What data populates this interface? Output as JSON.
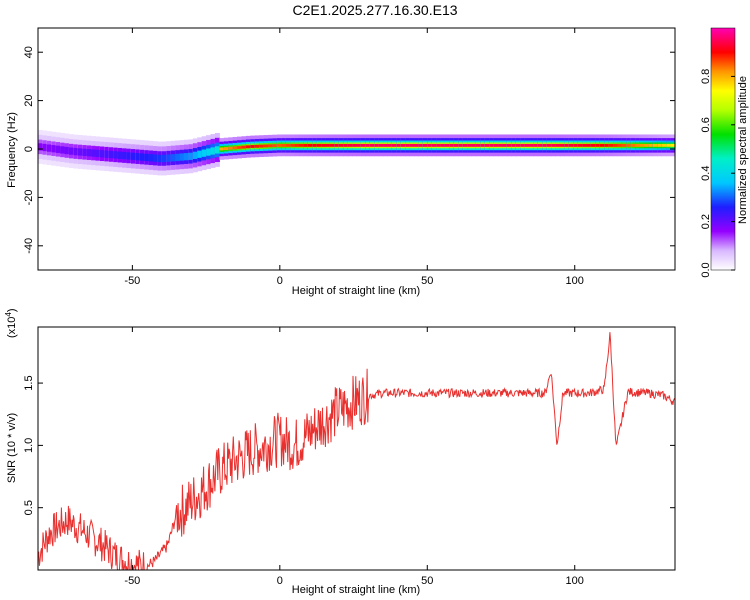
{
  "title": "C2E1.2025.277.16.30.E13",
  "chart_data": [
    {
      "type": "heatmap",
      "xlabel": "Height of straight line (km)",
      "ylabel": "Frequency (Hz)",
      "xlim": [
        -82,
        134
      ],
      "ylim": [
        -50,
        50
      ],
      "xticks": [
        -50,
        0,
        50,
        100
      ],
      "yticks": [
        -40,
        -20,
        0,
        20,
        40
      ],
      "colorbar": {
        "label": "Normalized spectral amplitude",
        "range": [
          0,
          1
        ],
        "ticks": [
          0.0,
          0.2,
          0.4,
          0.6,
          0.8
        ]
      },
      "ridge": {
        "x": [
          -82,
          -70,
          -60,
          -50,
          -40,
          -30,
          -20,
          -10,
          0,
          10,
          30,
          60,
          90,
          110,
          134
        ],
        "freq": [
          1,
          -1,
          -2,
          -3,
          -4,
          -3,
          0,
          1,
          1.5,
          1.5,
          1.5,
          1.5,
          1.5,
          1.5,
          1.5
        ],
        "amp": [
          0.3,
          0.35,
          0.4,
          0.45,
          0.5,
          0.6,
          0.8,
          0.9,
          0.85,
          0.9,
          0.95,
          0.95,
          0.95,
          0.9,
          0.75
        ]
      }
    },
    {
      "type": "line",
      "xlabel": "Height of straight line (km)",
      "ylabel": "SNR (10 * v/v)",
      "yscale_note": "(x10",
      "yscale_exp": "4",
      "xlim": [
        -82,
        134
      ],
      "ylim": [
        0,
        1.95
      ],
      "xticks": [
        -50,
        0,
        50,
        100
      ],
      "yticks": [
        0.5,
        1.0,
        1.5
      ],
      "ytick_labels": [
        "0.5",
        "1.0",
        "1.5"
      ],
      "color": "#e8312f",
      "series": [
        {
          "x": [
            -82,
            -78,
            -72,
            -66,
            -60,
            -55,
            -50,
            -45,
            -42,
            -38,
            -35,
            -32,
            -28,
            -24,
            -20,
            -15,
            -10,
            -5,
            0,
            5,
            10,
            15,
            20,
            25,
            30,
            35,
            40,
            50,
            60,
            70,
            80,
            90,
            92,
            94,
            96,
            100,
            105,
            110,
            112,
            114,
            118,
            125,
            130,
            134
          ],
          "values": [
            0.12,
            0.3,
            0.4,
            0.3,
            0.2,
            0.1,
            0.05,
            0.03,
            0.08,
            0.2,
            0.45,
            0.5,
            0.6,
            0.7,
            0.8,
            0.88,
            0.95,
            1.0,
            1.05,
            1.0,
            1.1,
            1.2,
            1.28,
            1.35,
            1.4,
            1.42,
            1.42,
            1.42,
            1.42,
            1.42,
            1.42,
            1.42,
            1.6,
            1.0,
            1.42,
            1.42,
            1.42,
            1.45,
            1.9,
            0.98,
            1.43,
            1.42,
            1.4,
            1.35
          ]
        }
      ]
    }
  ]
}
